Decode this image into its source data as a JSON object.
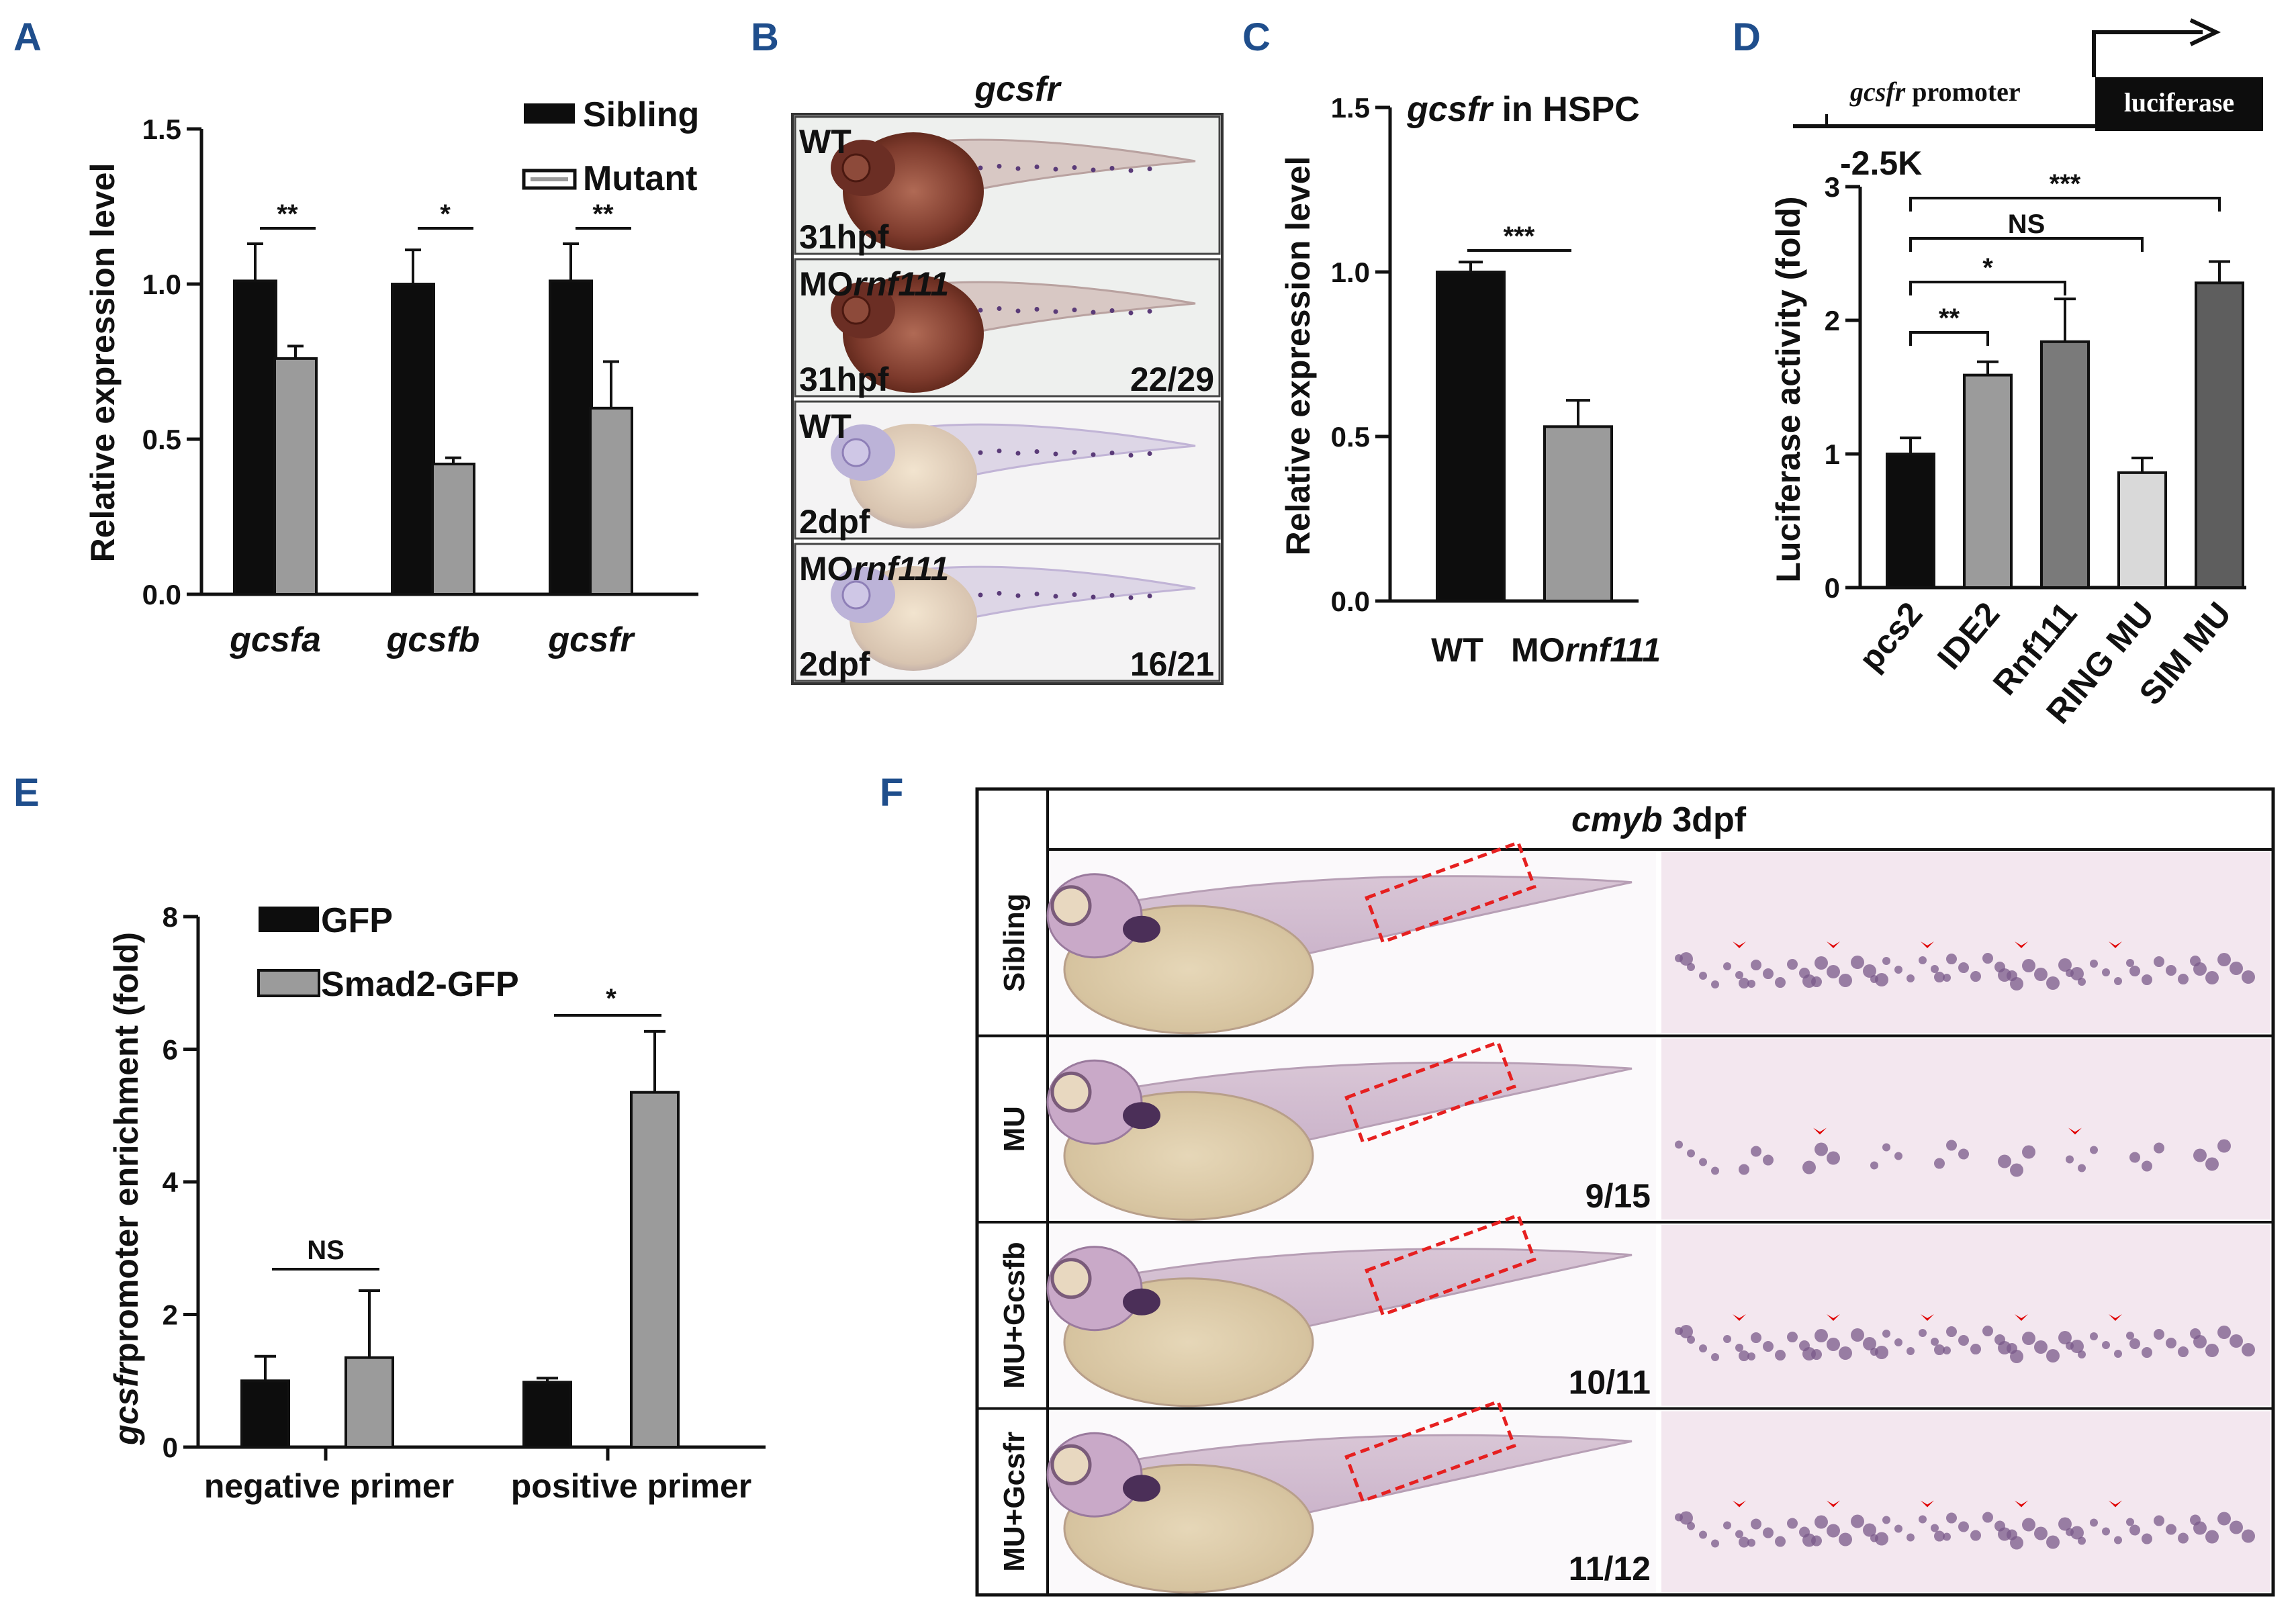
{
  "panel_letters": [
    "A",
    "B",
    "C",
    "D",
    "E",
    "F"
  ],
  "colors": {
    "black": "#0d0d0d",
    "gray": "#9b9b9b",
    "light": "#d9d9d9",
    "dark": "#5e5e5e",
    "panel_letter": "#1f4e8c",
    "box": "#e62020",
    "arrow": "#e00000"
  },
  "chart_data": [
    {
      "panel": "A",
      "type": "bar",
      "categories": [
        "gcsfa",
        "gcsfb",
        "gcsfr"
      ],
      "series": [
        {
          "name": "Sibling",
          "values": [
            1.01,
            1.0,
            1.01
          ],
          "errors": [
            0.12,
            0.11,
            0.12
          ]
        },
        {
          "name": "Mutant",
          "values": [
            0.76,
            0.42,
            0.6
          ],
          "errors": [
            0.04,
            0.02,
            0.15
          ]
        }
      ],
      "ylabel": "Relative expression level",
      "ylim": [
        0,
        1.5
      ],
      "yticks": [
        "0.0",
        "0.5",
        "1.0",
        "1.5"
      ],
      "significance": [
        "**",
        "*",
        "**"
      ],
      "legend": "top-right"
    },
    {
      "panel": "C",
      "type": "bar",
      "title_italic": "gcsfr",
      "title_rest": " in HSPC",
      "categories": [
        "WT",
        "MO"
      ],
      "category_suffix_italic": [
        "",
        "rnf111"
      ],
      "values": [
        1.0,
        0.53
      ],
      "errors": [
        0.03,
        0.08
      ],
      "ylabel": "Relative expression level",
      "ylim": [
        0,
        1.5
      ],
      "yticks": [
        "0.0",
        "0.5",
        "1.0",
        "1.5"
      ],
      "significance": [
        "***"
      ]
    },
    {
      "panel": "D",
      "type": "bar",
      "categories": [
        "pcs2",
        "IDE2",
        "Rnf111",
        "RING MU",
        "SIM MU"
      ],
      "values": [
        1.0,
        1.59,
        1.84,
        0.86,
        2.28
      ],
      "errors": [
        0.12,
        0.1,
        0.32,
        0.11,
        0.16
      ],
      "ylabel": "Luciferase activity  (fold)",
      "ylim": [
        0,
        3
      ],
      "yticks": [
        "0",
        "1",
        "2",
        "3"
      ],
      "significance": [
        {
          "from": "pcs2",
          "to": "IDE2",
          "label": "**"
        },
        {
          "from": "pcs2",
          "to": "Rnf111",
          "label": "*"
        },
        {
          "from": "pcs2",
          "to": "RING MU",
          "label": "NS"
        },
        {
          "from": "pcs2",
          "to": "SIM MU",
          "label": "***"
        }
      ],
      "construct": {
        "promoter": "gcsfr",
        "promoter_suffix": " promoter",
        "reporter": "luciferase",
        "start": "-2.5K"
      }
    },
    {
      "panel": "E",
      "type": "bar",
      "categories": [
        "negative primer",
        "positive primer"
      ],
      "series": [
        {
          "name": "GFP",
          "values": [
            1.0,
            0.98
          ],
          "errors": [
            0.37,
            0.06
          ]
        },
        {
          "name": "Smad2-GFP",
          "values": [
            1.35,
            5.35
          ],
          "errors": [
            1.01,
            0.92
          ]
        }
      ],
      "ylabel_italic": "gcsfr",
      "ylabel_rest": "promoter enrichment (fold)",
      "ylim": [
        0,
        8
      ],
      "yticks": [
        "0",
        "2",
        "4",
        "6",
        "8"
      ],
      "significance": [
        "NS",
        "*"
      ],
      "legend": "top-left"
    }
  ],
  "panel_b": {
    "title": "gcsfr",
    "rows": [
      {
        "genotype": "WT",
        "genotype_italic": "",
        "stage": "31hpf",
        "count": ""
      },
      {
        "genotype": "MO",
        "genotype_italic": "rnf111",
        "stage": "31hpf",
        "count": "22/29"
      },
      {
        "genotype": "WT",
        "genotype_italic": "",
        "stage": "2dpf",
        "count": ""
      },
      {
        "genotype": "MO",
        "genotype_italic": "rnf111",
        "stage": "2dpf",
        "count": "16/21"
      }
    ]
  },
  "panel_f": {
    "title_italic": "cmyb",
    "title_rest": " 3dpf",
    "rows": [
      {
        "label": "Sibling",
        "count": "",
        "arrows": 5
      },
      {
        "label": "MU",
        "count": "9/15",
        "arrows": 2
      },
      {
        "label": "MU+Gcsfb",
        "count": "10/11",
        "arrows": 5
      },
      {
        "label": "MU+Gcsfr",
        "count": "11/12",
        "arrows": 5
      }
    ]
  }
}
